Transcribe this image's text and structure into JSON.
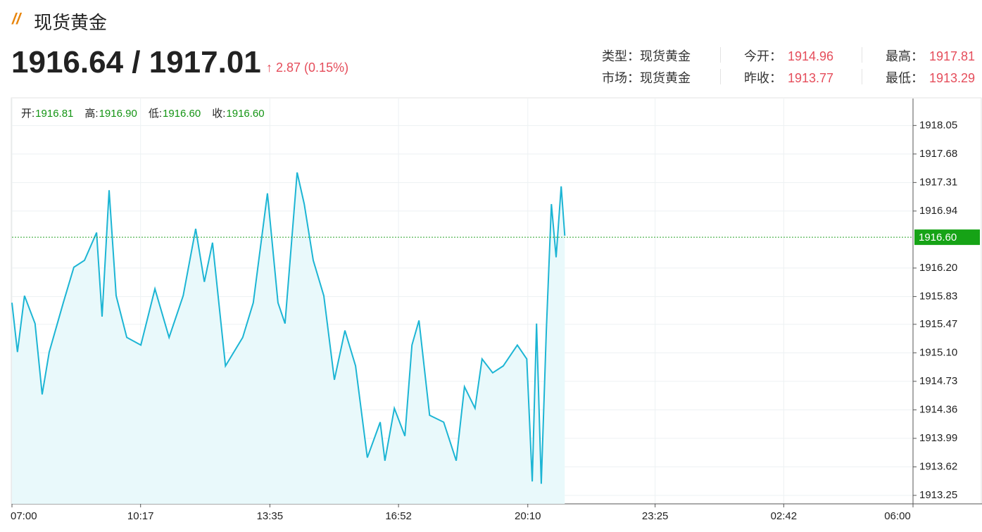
{
  "header": {
    "title": "现货黄金",
    "price": "1916.64 / 1917.01",
    "change": "2.87 (0.15%)",
    "info": [
      {
        "label": "类型：",
        "value": "现货黄金"
      },
      {
        "label": "今开：",
        "value": "1914.96"
      },
      {
        "label": "最高：",
        "value": "1917.81"
      },
      {
        "label": "市场：",
        "value": "现货黄金"
      },
      {
        "label": "昨收：",
        "value": "1913.77"
      },
      {
        "label": "最低：",
        "value": "1913.29"
      }
    ]
  },
  "chart_data": {
    "type": "line",
    "ohlc": [
      {
        "label": "开:",
        "value": "1916.81"
      },
      {
        "label": "高:",
        "value": "1916.90"
      },
      {
        "label": "低:",
        "value": "1916.60"
      },
      {
        "label": "收:",
        "value": "1916.60"
      }
    ],
    "current": {
      "value": 1916.6,
      "label": "1916.60"
    },
    "xlim": [
      7,
      30
    ],
    "xticks": [
      {
        "value": 7,
        "label": "07:00"
      },
      {
        "value": 10.283,
        "label": "10:17"
      },
      {
        "value": 13.583,
        "label": "13:35"
      },
      {
        "value": 16.867,
        "label": "16:52"
      },
      {
        "value": 20.167,
        "label": "20:10"
      },
      {
        "value": 23.417,
        "label": "23:25"
      },
      {
        "value": 26.7,
        "label": "02:42"
      },
      {
        "value": 30,
        "label": "06:00"
      }
    ],
    "ylim": [
      1913.14,
      1918.4
    ],
    "yticks": [
      1918.05,
      1917.68,
      1917.31,
      1916.94,
      {
        "value": 1916.2,
        "label": "1916.20"
      },
      1915.83,
      1915.47,
      {
        "value": 1915.1,
        "label": "1915.10"
      },
      1914.73,
      1914.36,
      1913.99,
      1913.62,
      1913.25
    ],
    "grid": true,
    "series": [
      {
        "color": "#1cb5d4",
        "x": [
          7.0,
          7.14,
          7.32,
          7.59,
          7.77,
          7.95,
          8.31,
          8.58,
          8.85,
          9.16,
          9.3,
          9.48,
          9.66,
          9.93,
          10.29,
          10.65,
          11.01,
          11.37,
          11.69,
          11.91,
          12.12,
          12.45,
          12.89,
          13.16,
          13.52,
          13.79,
          13.97,
          14.28,
          14.46,
          14.69,
          14.96,
          15.23,
          15.5,
          15.77,
          16.07,
          16.4,
          16.52,
          16.76,
          17.03,
          17.21,
          17.39,
          17.66,
          18.02,
          18.34,
          18.55,
          18.82,
          19.0,
          19.27,
          19.54,
          19.9,
          20.14,
          20.28,
          20.39,
          20.51,
          20.64,
          20.77,
          20.89,
          21.02,
          21.11
        ],
        "values": [
          1915.75,
          1915.11,
          1915.84,
          1915.48,
          1914.56,
          1915.11,
          1915.75,
          1916.21,
          1916.3,
          1916.66,
          1915.57,
          1917.21,
          1915.84,
          1915.3,
          1915.2,
          1915.93,
          1915.3,
          1915.84,
          1916.71,
          1916.02,
          1916.53,
          1914.93,
          1915.3,
          1915.75,
          1917.17,
          1915.75,
          1915.48,
          1917.44,
          1917.03,
          1916.3,
          1915.84,
          1914.75,
          1915.39,
          1914.93,
          1913.74,
          1914.2,
          1913.7,
          1914.38,
          1914.02,
          1915.2,
          1915.52,
          1914.29,
          1914.2,
          1913.7,
          1914.66,
          1914.38,
          1915.02,
          1914.84,
          1914.93,
          1915.2,
          1915.02,
          1913.43,
          1915.48,
          1913.4,
          1915.39,
          1917.03,
          1916.34,
          1917.26,
          1916.62
        ]
      }
    ]
  }
}
